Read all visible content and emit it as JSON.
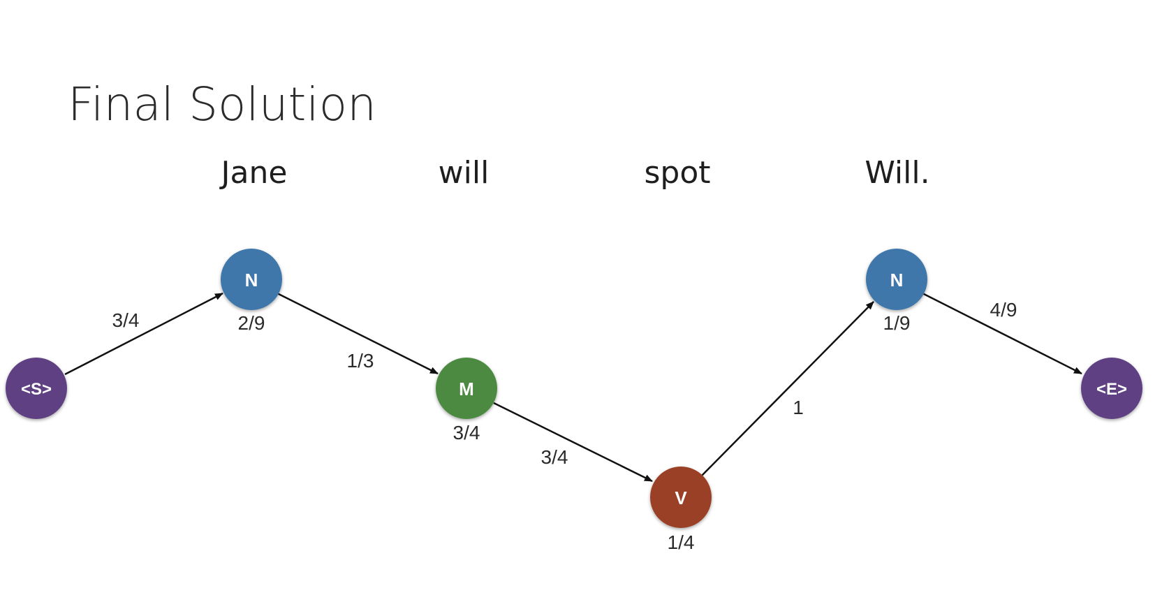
{
  "title": "Final Solution",
  "words": [
    "Jane",
    "will",
    "spot",
    "Will."
  ],
  "colors": {
    "N": "#3f77aa",
    "M": "#4c8a40",
    "V": "#9a4128",
    "boundary": "#5e3f82"
  },
  "nodes": [
    {
      "label": "<S>",
      "kind": "boundary",
      "emission": ""
    },
    {
      "label": "N",
      "kind": "N",
      "emission": "2/9"
    },
    {
      "label": "M",
      "kind": "M",
      "emission": "3/4"
    },
    {
      "label": "V",
      "kind": "V",
      "emission": "1/4"
    },
    {
      "label": "N",
      "kind": "N",
      "emission": "1/9"
    },
    {
      "label": "<E>",
      "kind": "boundary",
      "emission": ""
    }
  ],
  "transitions": [
    "3/4",
    "1/3",
    "3/4",
    "1",
    "4/9"
  ]
}
